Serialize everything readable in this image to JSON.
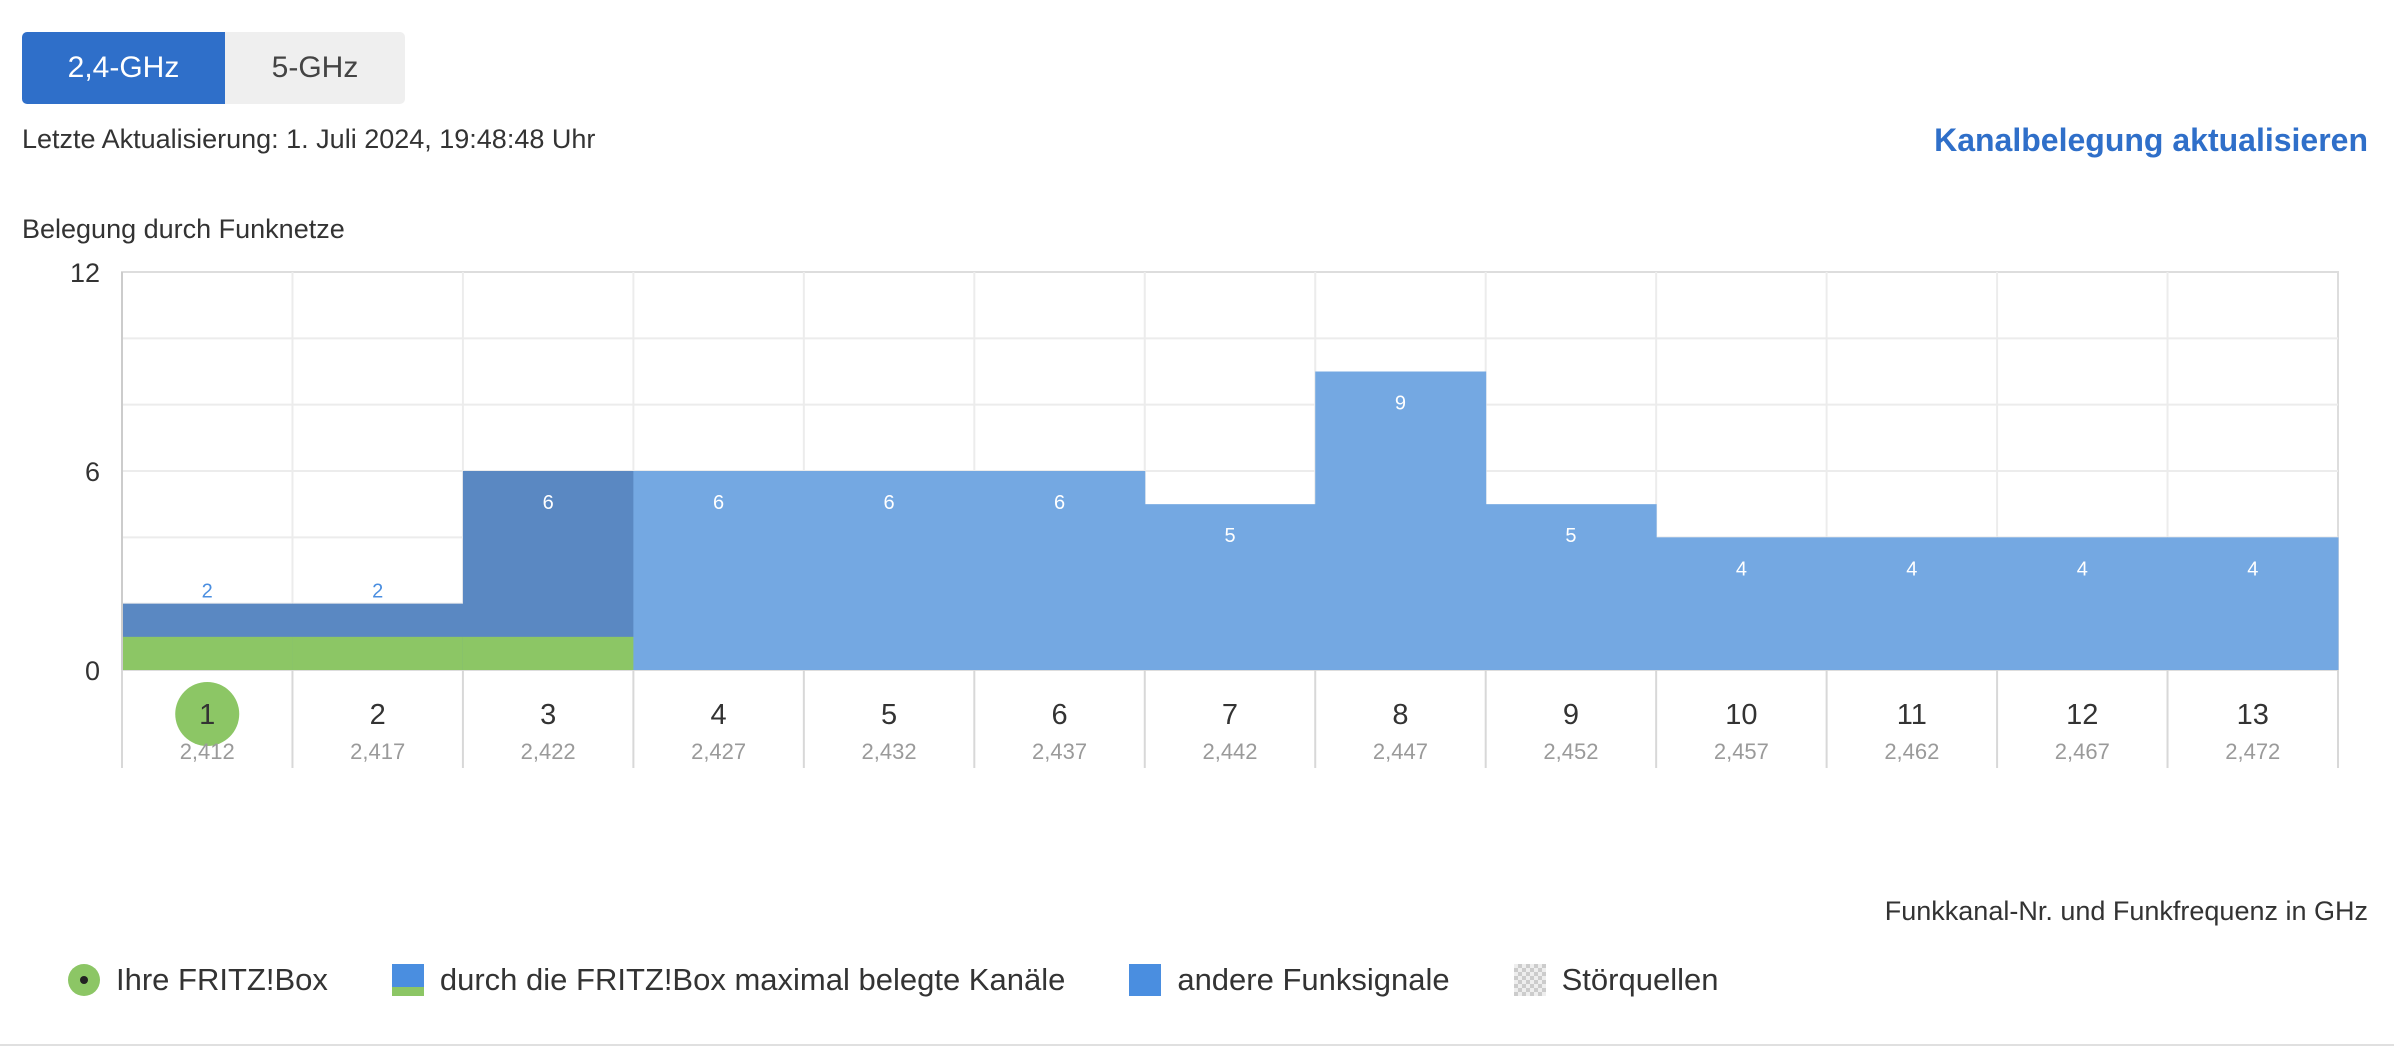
{
  "tabs": {
    "band_24": "2,4-GHz",
    "band_5": "5-GHz"
  },
  "last_update": "Letzte Aktualisierung: 1. Juli 2024, 19:48:48 Uhr",
  "refresh_link": "Kanalbelegung aktualisieren",
  "chart_title": "Belegung durch Funknetze",
  "xaxis_label": "Funkkanal-Nr. und Funkfrequenz in GHz",
  "legend": {
    "own_box": "Ihre FRITZ!Box",
    "max_channels": "durch die FRITZ!Box maximal belegte Kanäle",
    "other_signals": "andere Funksignale",
    "interference": "Störquellen"
  },
  "colors": {
    "accent": "#2f6fc9",
    "other_signals": "#74a8e2",
    "fritz_channels": "#5a88c2",
    "own_indicator": "#8cc665"
  },
  "chart_data": {
    "type": "bar",
    "title": "Belegung durch Funknetze",
    "xlabel": "Funkkanal-Nr. und Funkfrequenz in GHz",
    "ylabel": "",
    "ylim": [
      0,
      12
    ],
    "yticks": [
      0,
      6,
      12
    ],
    "grid": true,
    "categories": [
      "1",
      "2",
      "3",
      "4",
      "5",
      "6",
      "7",
      "8",
      "9",
      "10",
      "11",
      "12",
      "13"
    ],
    "frequencies": [
      "2,412",
      "2,417",
      "2,422",
      "2,427",
      "2,432",
      "2,437",
      "2,442",
      "2,447",
      "2,452",
      "2,457",
      "2,462",
      "2,467",
      "2,472"
    ],
    "values": [
      2,
      2,
      6,
      6,
      6,
      6,
      5,
      9,
      5,
      4,
      4,
      4,
      4
    ],
    "fritz_channels": [
      "1",
      "2",
      "3"
    ],
    "own_channel": "1",
    "fritz_bar_value": 1
  }
}
